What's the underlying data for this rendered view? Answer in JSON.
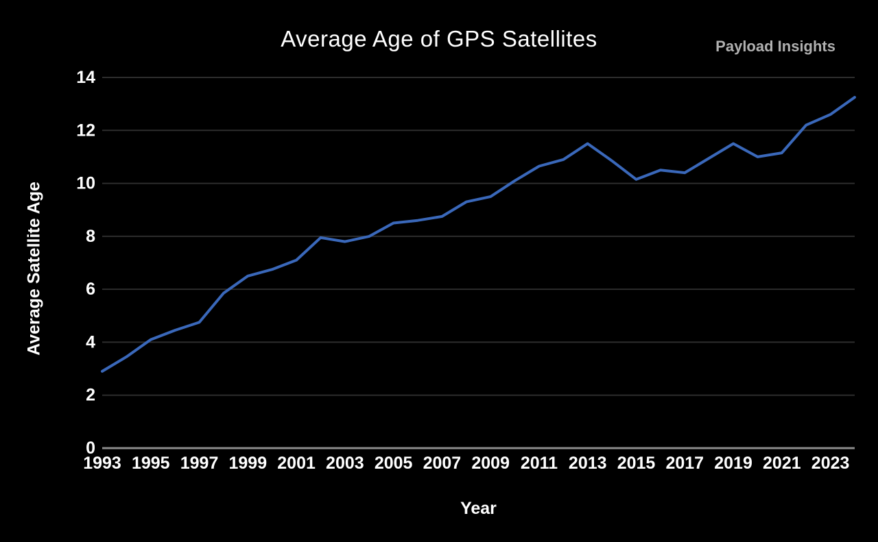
{
  "header": {
    "brand": "Payload Insights"
  },
  "chart_data": {
    "type": "line",
    "title": "Average Age of GPS Satellites",
    "xlabel": "Year",
    "ylabel": "Average Satellite Age",
    "x": [
      1993,
      1994,
      1995,
      1996,
      1997,
      1998,
      1999,
      2000,
      2001,
      2002,
      2003,
      2004,
      2005,
      2006,
      2007,
      2008,
      2009,
      2010,
      2011,
      2012,
      2013,
      2014,
      2015,
      2016,
      2017,
      2018,
      2019,
      2020,
      2021,
      2022,
      2023,
      2024
    ],
    "series": [
      {
        "name": "Average Satellite Age",
        "color": "#3a68ba",
        "values": [
          2.9,
          3.45,
          4.1,
          4.45,
          4.75,
          5.85,
          6.5,
          6.75,
          7.1,
          7.95,
          7.8,
          8.0,
          8.5,
          8.6,
          8.75,
          9.3,
          9.5,
          10.1,
          10.65,
          10.9,
          11.5,
          10.85,
          10.15,
          10.5,
          10.4,
          10.95,
          11.5,
          11.0,
          11.15,
          12.2,
          12.6,
          13.25
        ]
      }
    ],
    "xlim": [
      1993,
      2024
    ],
    "ylim": [
      0,
      14
    ],
    "yticks": [
      0,
      2,
      4,
      6,
      8,
      10,
      12,
      14
    ],
    "xticks": [
      1993,
      1995,
      1997,
      1999,
      2001,
      2003,
      2005,
      2007,
      2009,
      2011,
      2013,
      2015,
      2017,
      2019,
      2021,
      2023
    ],
    "grid": "horizontal",
    "legend": "none",
    "colors": {
      "background": "#000000",
      "text": "#ffffff",
      "brand_text": "#b0b0b0",
      "gridline": "#2d2d2d",
      "axis_line": "#8c8c8c"
    }
  }
}
